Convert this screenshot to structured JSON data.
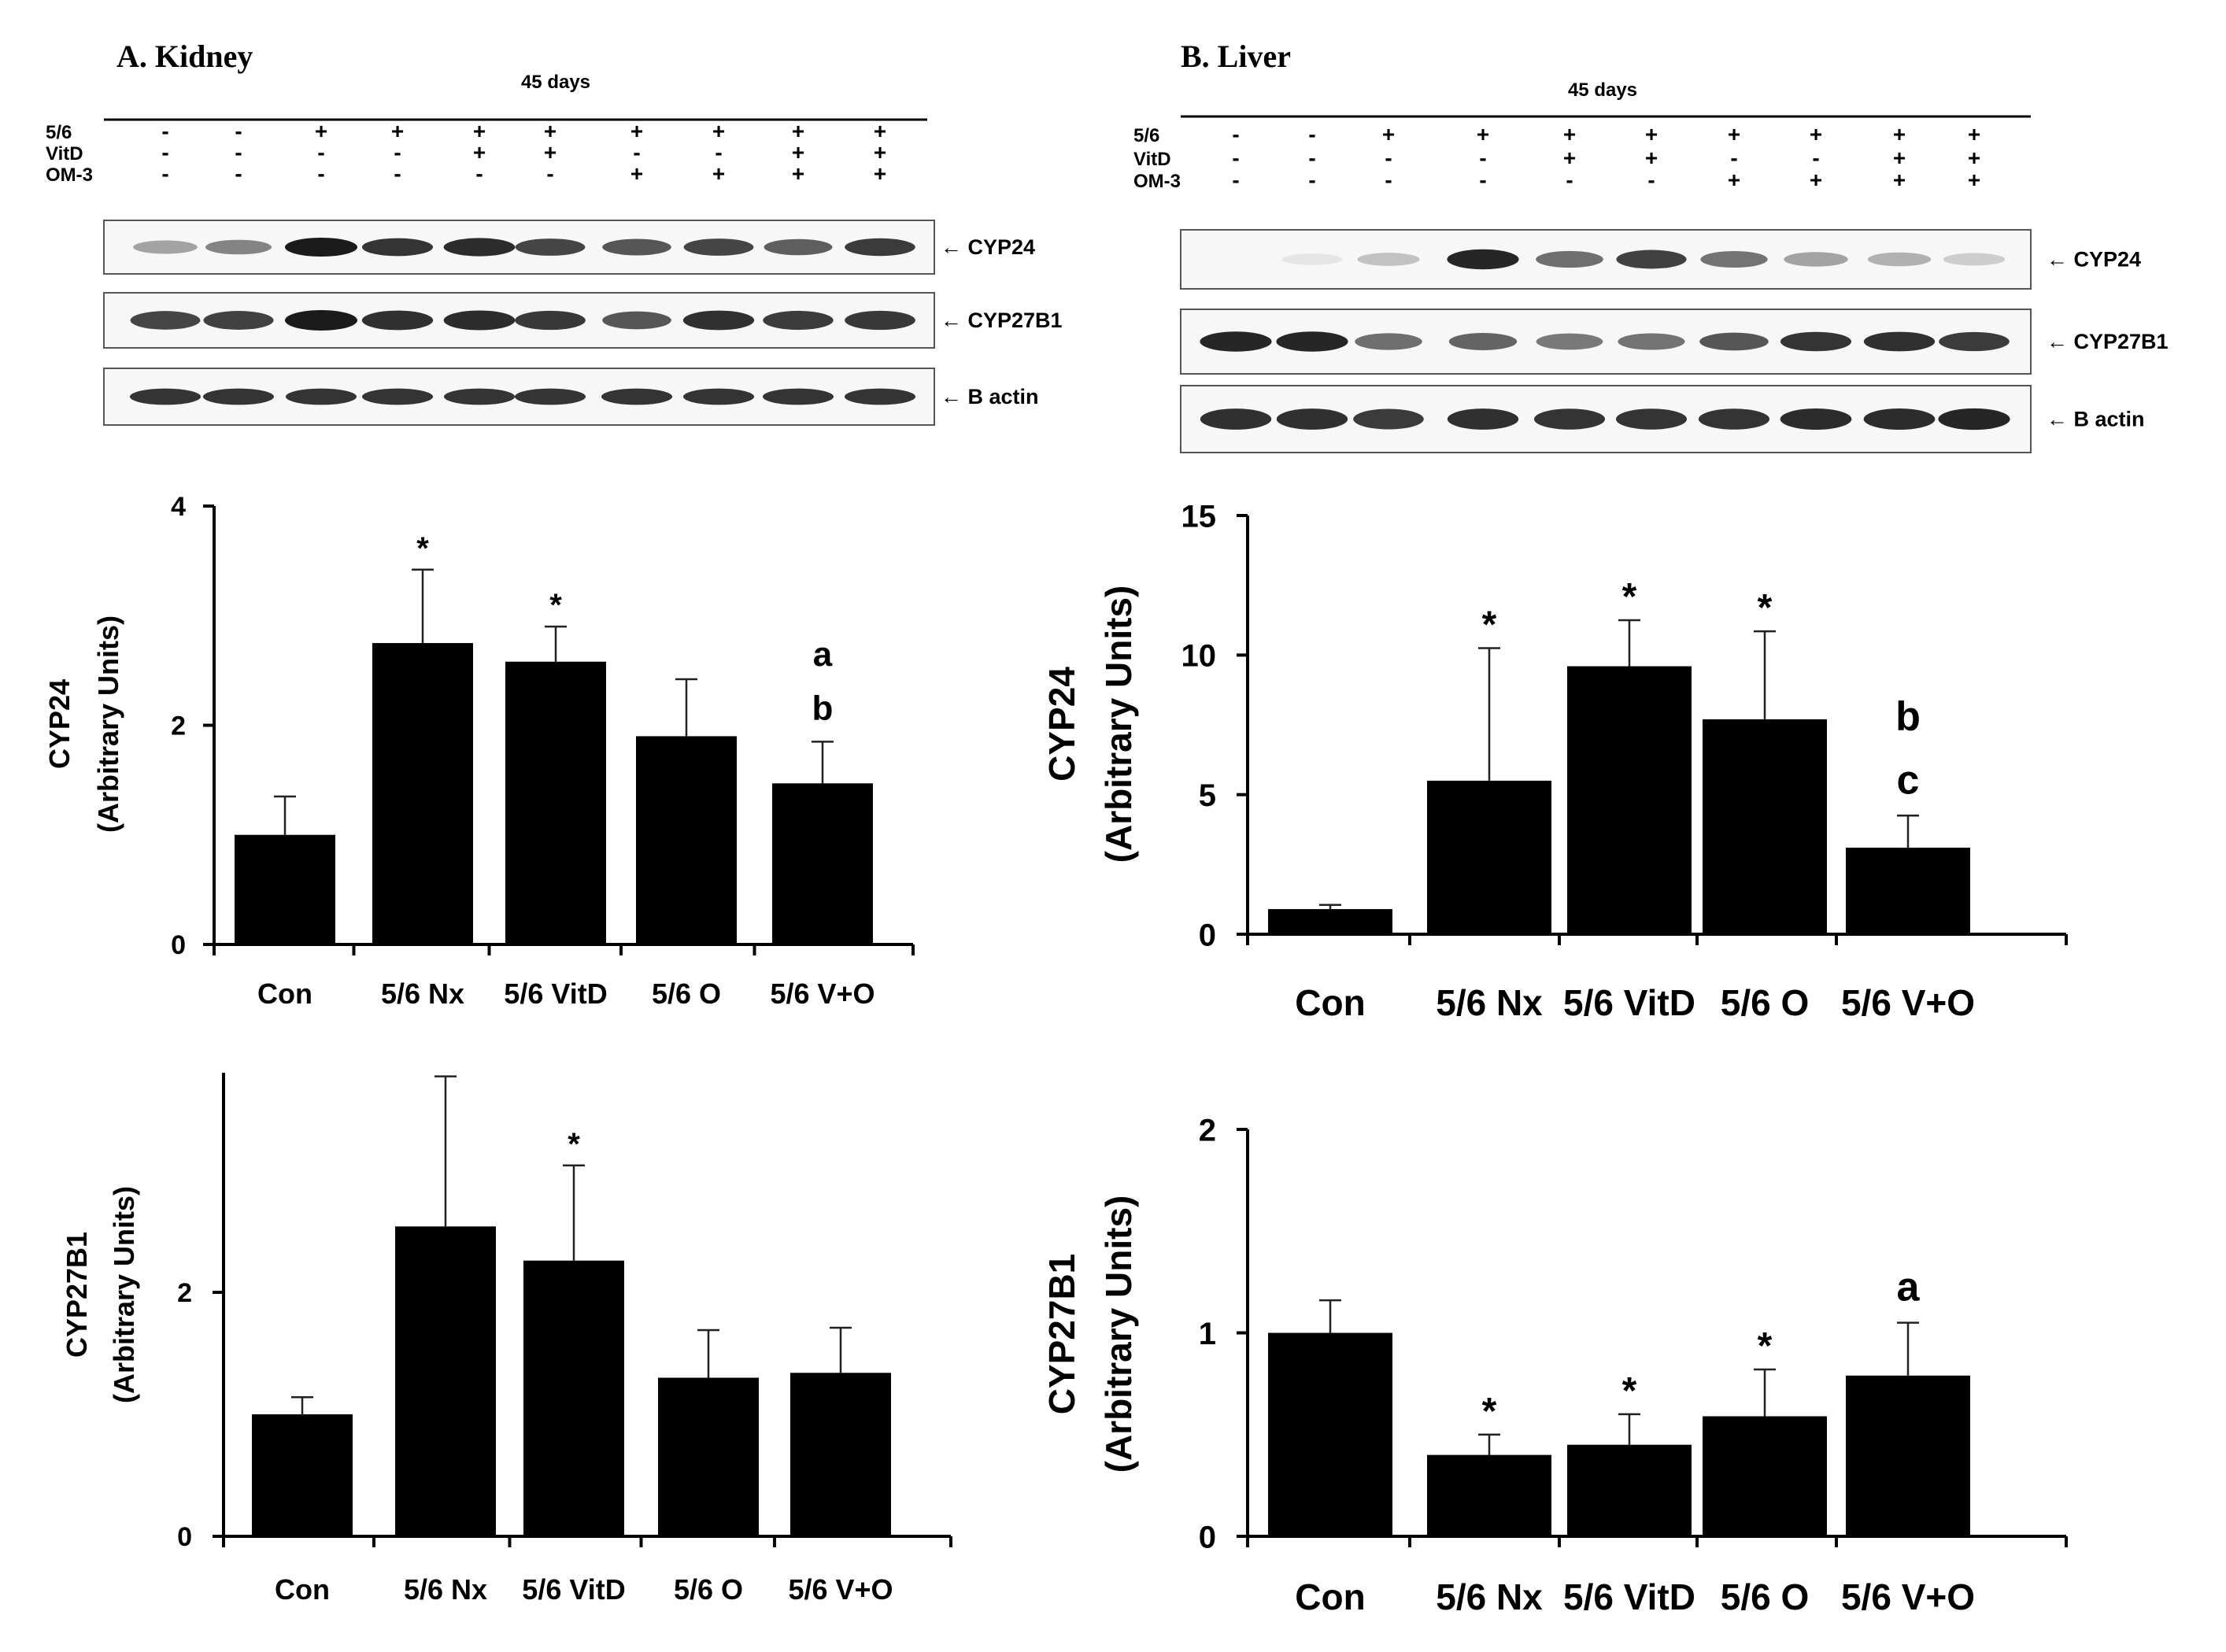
{
  "panels": [
    {
      "id": "kidney",
      "title": "A. Kidney",
      "timepoint": "45 days",
      "treatments": [
        {
          "label": "5/6",
          "signs": [
            "-",
            "-",
            "+",
            "+",
            "+",
            "+",
            "+",
            "+",
            "+",
            "+"
          ]
        },
        {
          "label": "VitD",
          "signs": [
            "-",
            "-",
            "-",
            "-",
            "+",
            "+",
            "-",
            "-",
            "+",
            "+"
          ]
        },
        {
          "label": "OM-3",
          "signs": [
            "-",
            "-",
            "-",
            "-",
            "-",
            "-",
            "+",
            "+",
            "+",
            "+"
          ]
        }
      ],
      "blots": [
        {
          "label": "CYP24",
          "arrow": "←",
          "intensities": [
            0.35,
            0.5,
            1.0,
            0.88,
            0.92,
            0.8,
            0.72,
            0.8,
            0.68,
            0.85
          ]
        },
        {
          "label": "CYP27B1",
          "arrow": "←",
          "intensities": [
            0.8,
            0.82,
            1.0,
            0.9,
            0.92,
            0.86,
            0.72,
            0.9,
            0.84,
            0.86
          ]
        },
        {
          "label": "B actin",
          "arrow": "←",
          "intensities": [
            0.88,
            0.88,
            0.88,
            0.88,
            0.88,
            0.88,
            0.88,
            0.88,
            0.88,
            0.88
          ]
        }
      ]
    },
    {
      "id": "liver",
      "title": "B. Liver",
      "timepoint": "45 days",
      "treatments": [
        {
          "label": "5/6",
          "signs": [
            "-",
            "-",
            "+",
            "+",
            "+",
            "+",
            "+",
            "+",
            "+",
            "+"
          ]
        },
        {
          "label": "VitD",
          "signs": [
            "-",
            "-",
            "-",
            "-",
            "+",
            "+",
            "-",
            "-",
            "+",
            "+"
          ]
        },
        {
          "label": "OM-3",
          "signs": [
            "-",
            "-",
            "-",
            "-",
            "-",
            "-",
            "+",
            "+",
            "+",
            "+"
          ]
        }
      ],
      "blots": [
        {
          "label": "CYP24",
          "arrow": "←",
          "intensities": [
            0.0,
            0.03,
            0.2,
            0.95,
            0.6,
            0.82,
            0.58,
            0.35,
            0.28,
            0.15
          ]
        },
        {
          "label": "CYP27B1",
          "arrow": "←",
          "intensities": [
            0.95,
            0.95,
            0.6,
            0.65,
            0.55,
            0.58,
            0.72,
            0.88,
            0.9,
            0.85
          ]
        },
        {
          "label": "B actin",
          "arrow": "←",
          "intensities": [
            0.9,
            0.9,
            0.85,
            0.9,
            0.88,
            0.88,
            0.88,
            0.92,
            0.92,
            0.95
          ]
        }
      ]
    }
  ],
  "chart_data": [
    {
      "type": "bar",
      "panel": "A. Kidney",
      "categories": [
        "Con",
        "5/6 Nx",
        "5/6 VitD",
        "5/6 O",
        "5/6 V+O"
      ],
      "values": [
        1.0,
        2.75,
        2.58,
        1.9,
        1.47
      ],
      "errors": [
        0.35,
        0.67,
        0.32,
        0.52,
        0.38
      ],
      "annotations": [
        "",
        "*",
        "*",
        "",
        "a\nb"
      ],
      "ylabel": "CYP24",
      "ylabel2": "(Arbitrary Units)",
      "xlabel": "",
      "ylim": [
        0,
        4
      ],
      "yticks": [
        0,
        2,
        4
      ]
    },
    {
      "type": "bar",
      "panel": "A. Kidney",
      "categories": [
        "Con",
        "5/6 Nx",
        "5/6 VitD",
        "5/6 O",
        "5/6 V+O"
      ],
      "values": [
        1.0,
        2.54,
        2.26,
        1.3,
        1.34
      ],
      "errors": [
        0.14,
        1.23,
        0.78,
        0.39,
        0.37
      ],
      "annotations": [
        "",
        "",
        "*",
        "",
        ""
      ],
      "ylabel": "CYP27B1",
      "ylabel2": "(Arbitrary Units)",
      "xlabel": "",
      "ylim": [
        0,
        3.8
      ],
      "yticks": [
        0,
        2
      ]
    },
    {
      "type": "bar",
      "panel": "B. Liver",
      "categories": [
        "Con",
        "5/6 Nx",
        "5/6 VitD",
        "5/6 O",
        "5/6 V+O"
      ],
      "values": [
        0.9,
        5.5,
        9.6,
        7.7,
        3.1
      ],
      "errors": [
        0.15,
        4.75,
        1.65,
        3.15,
        1.15
      ],
      "annotations": [
        "",
        "*",
        "*",
        "*",
        "b\nc"
      ],
      "ylabel": "CYP24",
      "ylabel2": "(Arbitrary Units)",
      "xlabel": "",
      "ylim": [
        0,
        15
      ],
      "yticks": [
        0,
        5,
        10,
        15
      ]
    },
    {
      "type": "bar",
      "panel": "B. Liver",
      "categories": [
        "Con",
        "5/6 Nx",
        "5/6 VitD",
        "5/6 O",
        "5/6 V+O"
      ],
      "values": [
        1.0,
        0.4,
        0.45,
        0.59,
        0.79
      ],
      "errors": [
        0.16,
        0.1,
        0.15,
        0.23,
        0.26
      ],
      "annotations": [
        "",
        "*",
        "*",
        "*",
        "a"
      ],
      "ylabel": "CYP27B1",
      "ylabel2": "(Arbitrary Units)",
      "xlabel": "",
      "ylim": [
        0,
        2
      ],
      "yticks": [
        0,
        1,
        2
      ]
    }
  ]
}
